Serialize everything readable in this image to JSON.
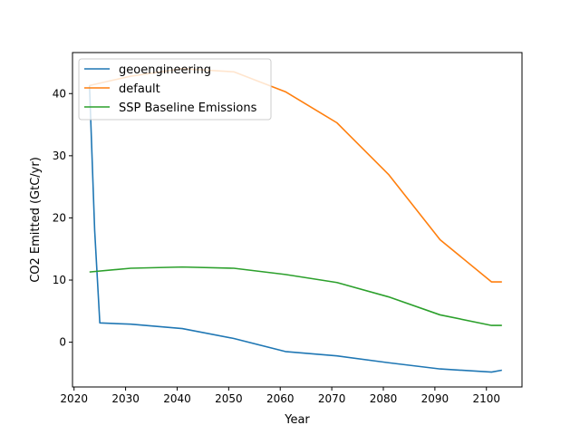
{
  "chart_data": {
    "type": "line",
    "title": "",
    "xlabel": "Year",
    "ylabel": "CO2 Emitted (GtC/yr)",
    "xlim": [
      2019.7,
      2106.9
    ],
    "ylim": [
      -7.2,
      46.6
    ],
    "xticks": [
      2020,
      2030,
      2040,
      2050,
      2060,
      2070,
      2080,
      2090,
      2100
    ],
    "yticks": [
      0,
      10,
      20,
      30,
      40
    ],
    "legend_position": "upper-left",
    "grid": false,
    "series": [
      {
        "name": "geoengineering",
        "color": "#1f77b4",
        "x": [
          2023,
          2024,
          2025,
          2031,
          2041,
          2051,
          2061,
          2071,
          2081,
          2091,
          2101,
          2103
        ],
        "y": [
          41.3,
          18,
          3.1,
          2.9,
          2.2,
          0.6,
          -1.5,
          -2.2,
          -3.3,
          -4.3,
          -4.8,
          -4.5
        ]
      },
      {
        "name": "default",
        "color": "#ff7f0e",
        "x": [
          2023,
          2031,
          2041,
          2051,
          2061,
          2071,
          2081,
          2091,
          2101,
          2103
        ],
        "y": [
          41.3,
          42.8,
          44.0,
          43.5,
          40.3,
          35.3,
          27.0,
          16.5,
          9.7,
          9.7
        ]
      },
      {
        "name": "SSP Baseline Emissions",
        "color": "#2ca02c",
        "x": [
          2023,
          2031,
          2041,
          2051,
          2061,
          2071,
          2081,
          2091,
          2101,
          2103
        ],
        "y": [
          11.3,
          11.9,
          12.1,
          11.9,
          10.9,
          9.6,
          7.3,
          4.4,
          2.7,
          2.7
        ]
      }
    ]
  }
}
